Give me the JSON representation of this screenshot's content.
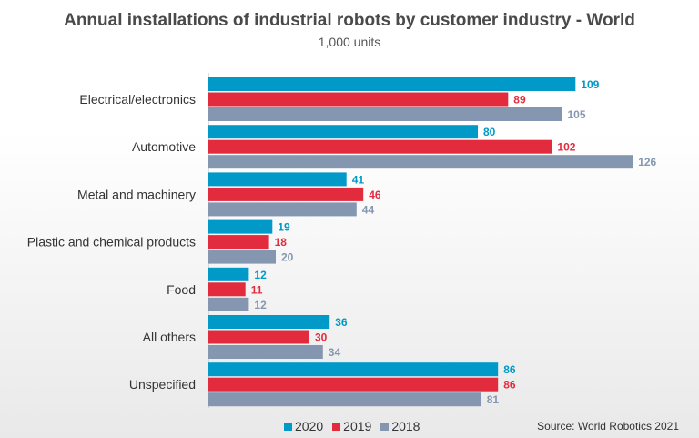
{
  "header": {
    "title": "Annual installations of industrial robots by customer industry - World",
    "subtitle": "1,000 units"
  },
  "footer": {
    "source": "Source: World Robotics 2021"
  },
  "colors": {
    "2020": "#0099c8",
    "2019": "#e32b3e",
    "2018": "#8496b0"
  },
  "chart_data": {
    "type": "bar",
    "orientation": "horizontal",
    "title": "Annual installations of industrial robots by customer industry - World",
    "subtitle": "1,000 units",
    "categories": [
      "Electrical/electronics",
      "Automotive",
      "Metal and machinery",
      "Plastic and chemical products",
      "Food",
      "All others",
      "Unspecified"
    ],
    "series": [
      {
        "name": "2020",
        "values": [
          109,
          80,
          41,
          19,
          12,
          36,
          86
        ]
      },
      {
        "name": "2019",
        "values": [
          89,
          102,
          46,
          18,
          11,
          30,
          86
        ]
      },
      {
        "name": "2018",
        "values": [
          105,
          126,
          44,
          20,
          12,
          34,
          81
        ]
      }
    ],
    "xlim": [
      0,
      140
    ],
    "legend_position": "bottom",
    "grid": false
  }
}
